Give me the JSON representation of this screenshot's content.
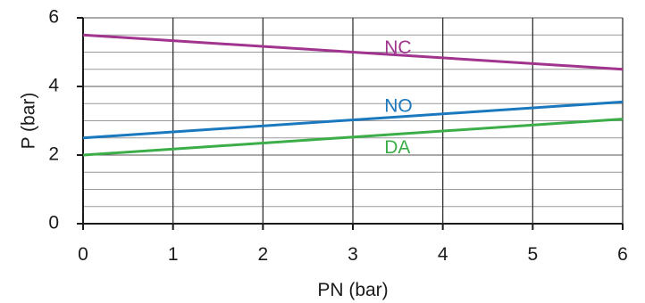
{
  "chart_data": {
    "type": "line",
    "xlabel": "PN (bar)",
    "ylabel": "P (bar)",
    "xlim": [
      0,
      6
    ],
    "ylim": [
      0,
      6
    ],
    "xticks": [
      "0",
      "1",
      "2",
      "3",
      "4",
      "5",
      "6"
    ],
    "yticks": [
      "0",
      "2",
      "4",
      "6"
    ],
    "x_major_grid": [
      0,
      1,
      2,
      3,
      4,
      5,
      6
    ],
    "y_minor_grid_step": 0.5,
    "grid": true,
    "series": [
      {
        "name": "NC",
        "x": [
          0,
          6
        ],
        "y": [
          5.5,
          4.5
        ],
        "color": "#a0348e"
      },
      {
        "name": "NO",
        "x": [
          0,
          6
        ],
        "y": [
          2.5,
          3.55
        ],
        "color": "#1a78be"
      },
      {
        "name": "DA",
        "x": [
          0,
          6
        ],
        "y": [
          2.0,
          3.05
        ],
        "color": "#3cae49"
      }
    ],
    "series_label_positions": [
      {
        "name": "NC",
        "x": 3.35,
        "y": 5.1
      },
      {
        "name": "NO",
        "x": 3.35,
        "y": 3.4
      },
      {
        "name": "DA",
        "x": 3.35,
        "y": 2.2
      }
    ]
  }
}
